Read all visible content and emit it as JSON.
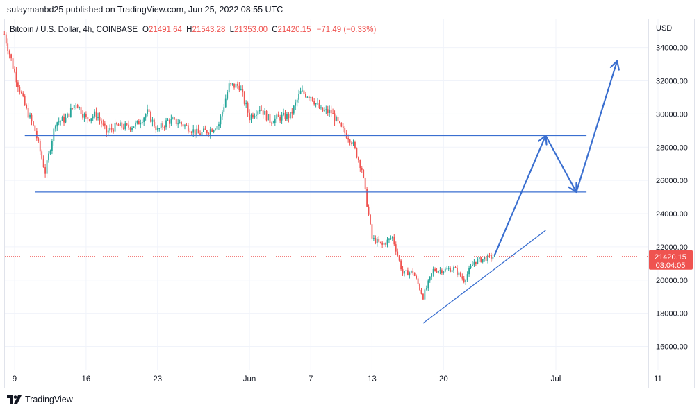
{
  "header": {
    "publisher": "sulaymanbd25 published on TradingView.com, Jun 25, 2022 08:55 UTC"
  },
  "legend": {
    "symbol": "Bitcoin / U.S. Dollar, 4h, COINBASE",
    "o_label": "O",
    "o_value": "21491.64",
    "h_label": "H",
    "h_value": "21543.28",
    "l_label": "L",
    "l_value": "21353.00",
    "c_label": "C",
    "c_value": "21420.15",
    "change": "−71.49 (−0.33%)"
  },
  "footer": {
    "brand": "TradingView"
  },
  "colors": {
    "up": "#26a69a",
    "down": "#ef5350",
    "annotation": "#3a6fd0",
    "grid": "#f0f3fa",
    "price_line": "#ef5350",
    "axis_text": "#131722"
  },
  "chart_data": {
    "type": "candlestick",
    "timeframe": "4h",
    "currency": "USD",
    "yaxis": {
      "label": "USD",
      "ticks": [
        16000,
        18000,
        20000,
        22000,
        24000,
        26000,
        28000,
        30000,
        32000,
        34000
      ],
      "range": [
        14600,
        35700
      ]
    },
    "xaxis": {
      "ticks": [
        {
          "label": "9",
          "date": "2022-05-09"
        },
        {
          "label": "16",
          "date": "2022-05-16"
        },
        {
          "label": "23",
          "date": "2022-05-23"
        },
        {
          "label": "Jun",
          "date": "2022-06-01"
        },
        {
          "label": "7",
          "date": "2022-06-07"
        },
        {
          "label": "13",
          "date": "2022-06-13"
        },
        {
          "label": "20",
          "date": "2022-06-20"
        },
        {
          "label": "Jul",
          "date": "2022-07-01"
        },
        {
          "label": "11",
          "date": "2022-07-11"
        }
      ],
      "range": [
        "2022-05-09",
        "2022-07-11"
      ]
    },
    "last_price": {
      "value": 21420.15,
      "label": "21420.15",
      "countdown": "03:04:05"
    },
    "price_path": [
      [
        "2022-05-08",
        34800
      ],
      [
        "2022-05-09",
        32500
      ],
      [
        "2022-05-10",
        30500
      ],
      [
        "2022-05-11",
        29000
      ],
      [
        "2022-05-12",
        26500
      ],
      [
        "2022-05-13",
        29500
      ],
      [
        "2022-05-14",
        29700
      ],
      [
        "2022-05-15",
        30700
      ],
      [
        "2022-05-16",
        29700
      ],
      [
        "2022-05-17",
        30000
      ],
      [
        "2022-05-18",
        28900
      ],
      [
        "2022-05-19",
        29300
      ],
      [
        "2022-05-20",
        29200
      ],
      [
        "2022-05-21",
        29400
      ],
      [
        "2022-05-22",
        30100
      ],
      [
        "2022-05-23",
        29000
      ],
      [
        "2022-05-24",
        29600
      ],
      [
        "2022-05-25",
        29500
      ],
      [
        "2022-05-26",
        29200
      ],
      [
        "2022-05-27",
        28800
      ],
      [
        "2022-05-28",
        29000
      ],
      [
        "2022-05-29",
        29400
      ],
      [
        "2022-05-30",
        31700
      ],
      [
        "2022-05-31",
        31700
      ],
      [
        "2022-06-01",
        29800
      ],
      [
        "2022-06-02",
        30400
      ],
      [
        "2022-06-03",
        29600
      ],
      [
        "2022-06-04",
        29800
      ],
      [
        "2022-06-05",
        29900
      ],
      [
        "2022-06-06",
        31300
      ],
      [
        "2022-06-07",
        31100
      ],
      [
        "2022-06-08",
        30200
      ],
      [
        "2022-06-09",
        30100
      ],
      [
        "2022-06-10",
        29100
      ],
      [
        "2022-06-11",
        28400
      ],
      [
        "2022-06-12",
        26700
      ],
      [
        "2022-06-13",
        22500
      ],
      [
        "2022-06-14",
        22100
      ],
      [
        "2022-06-15",
        22600
      ],
      [
        "2022-06-16",
        20400
      ],
      [
        "2022-06-17",
        20500
      ],
      [
        "2022-06-18",
        19000
      ],
      [
        "2022-06-19",
        20600
      ],
      [
        "2022-06-20",
        20600
      ],
      [
        "2022-06-21",
        20700
      ],
      [
        "2022-06-22",
        20000
      ],
      [
        "2022-06-23",
        21100
      ],
      [
        "2022-06-24",
        21300
      ],
      [
        "2022-06-25",
        21420
      ]
    ],
    "annotations": [
      {
        "type": "horizontal_line",
        "from": "2022-05-10",
        "to": "2022-07-04",
        "y": 28700
      },
      {
        "type": "horizontal_line",
        "from": "2022-05-11",
        "to": "2022-07-04",
        "y": 25300
      },
      {
        "type": "trend_line",
        "points": [
          [
            "2022-06-18",
            17400
          ],
          [
            "2022-06-30",
            23000
          ]
        ]
      },
      {
        "type": "arrow_path",
        "points": [
          [
            "2022-06-25",
            21500
          ],
          [
            "2022-06-30",
            28700
          ],
          [
            "2022-07-03",
            25300
          ],
          [
            "2022-07-07",
            33200
          ]
        ]
      }
    ]
  }
}
